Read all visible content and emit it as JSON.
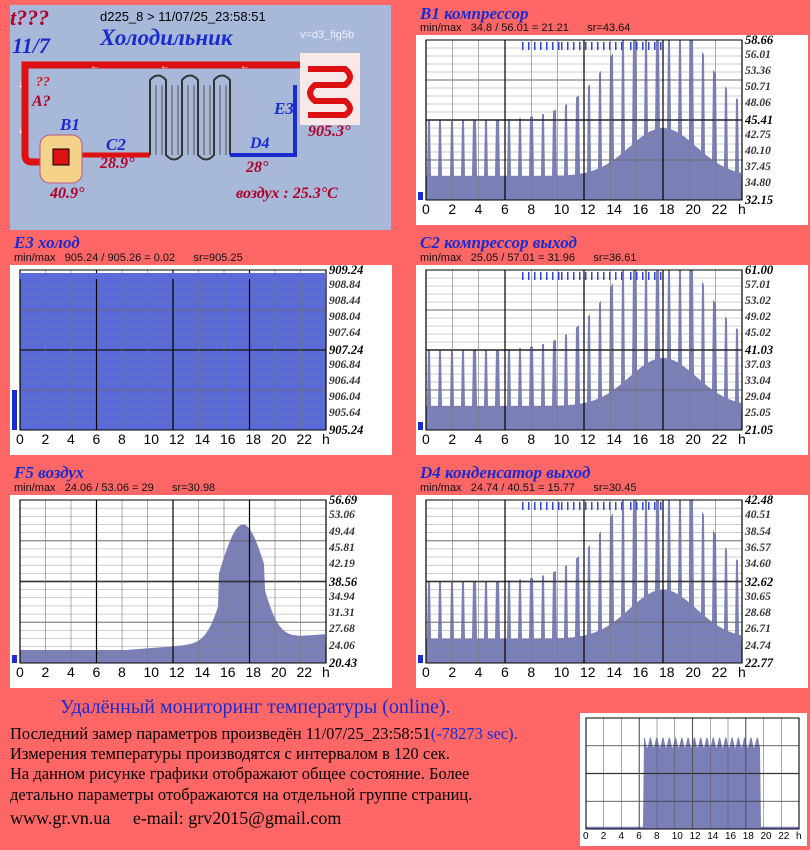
{
  "diagram": {
    "t_label": "t???",
    "date_label": "11/7",
    "device_line": "d225_8  >   11/07/25_23:58:51",
    "title": "Холодильник",
    "version": "v=d3_fig5b",
    "qq_label": "??",
    "a_label": "A?",
    "b1_label": "B1",
    "c2_label": "C2",
    "c2_value": "28.9°",
    "d4_label": "D4",
    "d4_value": "28°",
    "e3_label": "E3",
    "e3_value": "905.3°",
    "b1_value": "40.9°",
    "air_label": "воздух : 25.3°C"
  },
  "panels": [
    {
      "id": "b1",
      "title": "B1 компрессор",
      "stats": "min/max   34.8 / 56.01 = 21.21      sr=43.64",
      "yticks": [
        "58.66",
        "56.01",
        "53.36",
        "50.71",
        "48.06",
        "45.41",
        "42.75",
        "40.10",
        "37.45",
        "34.80",
        "32.15"
      ],
      "xticks": [
        "0",
        "2",
        "4",
        "6",
        "8",
        "10",
        "12",
        "14",
        "16",
        "18",
        "20",
        "22",
        "h"
      ],
      "fill": "#7b7fb8"
    },
    {
      "id": "e3",
      "title": "E3 холод",
      "stats": "min/max   905.24 / 905.26 = 0.02      sr=905.25",
      "yticks": [
        "909.24",
        "908.84",
        "908.44",
        "908.04",
        "907.64",
        "907.24",
        "906.84",
        "906.44",
        "906.04",
        "905.64",
        "905.24"
      ],
      "xticks": [
        "0",
        "2",
        "4",
        "6",
        "8",
        "10",
        "12",
        "14",
        "16",
        "18",
        "20",
        "22",
        "h"
      ],
      "fill": "#5a6ad8"
    },
    {
      "id": "c2",
      "title": "C2 компрессор выход",
      "stats": "min/max   25.05 / 57.01 = 31.96      sr=36.61",
      "yticks": [
        "61.00",
        "57.01",
        "53.02",
        "49.02",
        "45.02",
        "41.03",
        "37.03",
        "33.04",
        "29.04",
        "25.05",
        "21.05"
      ],
      "xticks": [
        "0",
        "2",
        "4",
        "6",
        "8",
        "10",
        "12",
        "14",
        "16",
        "18",
        "20",
        "22",
        "h"
      ],
      "fill": "#7b7fb8"
    },
    {
      "id": "f5",
      "title": "F5 воздух",
      "stats": "min/max   24.06 / 53.06 = 29      sr=30.98",
      "yticks": [
        "56.69",
        "53.06",
        "49.44",
        "45.81",
        "42.19",
        "38.56",
        "34.94",
        "31.31",
        "27.68",
        "24.06",
        "20.43"
      ],
      "xticks": [
        "0",
        "2",
        "4",
        "6",
        "8",
        "10",
        "12",
        "14",
        "16",
        "18",
        "20",
        "22",
        "h"
      ],
      "fill": "#7b7fb8"
    },
    {
      "id": "d4",
      "title": "D4 конденсатор выход",
      "stats": "min/max   24.74 / 40.51 = 15.77      sr=30.45",
      "yticks": [
        "42.48",
        "40.51",
        "38.54",
        "36.57",
        "34.60",
        "32.62",
        "30.65",
        "28.68",
        "26.71",
        "24.74",
        "22.77"
      ],
      "xticks": [
        "0",
        "2",
        "4",
        "6",
        "8",
        "10",
        "12",
        "14",
        "16",
        "18",
        "20",
        "22",
        "h"
      ],
      "fill": "#7b7fb8"
    }
  ],
  "mini_chart": {
    "xticks": [
      "0",
      "2",
      "4",
      "6",
      "8",
      "10",
      "12",
      "14",
      "16",
      "18",
      "20",
      "22",
      "h"
    ]
  },
  "footer": {
    "title": "Удалённый мониторинг температуры (online).",
    "line1": "Последний замер параметров произведён 11/07/25_23:58:51",
    "line1_secs": "(-78273 sec).",
    "line2": "Измерения температуры  производятся с интервалом в 120 сек.",
    "line3": "На данном рисунке графики отображают общее состояние. Более",
    "line4": "детально параметры отображаются на отдельной группе страниц.",
    "website": "www.gr.vn.ua",
    "email": "e-mail: grv2015@gmail.com"
  },
  "colors": {
    "background": "#ff6666",
    "accent_blue": "#1a2bd0",
    "accent_red": "#b0002a",
    "chart_fill": "#7b7fb8"
  }
}
